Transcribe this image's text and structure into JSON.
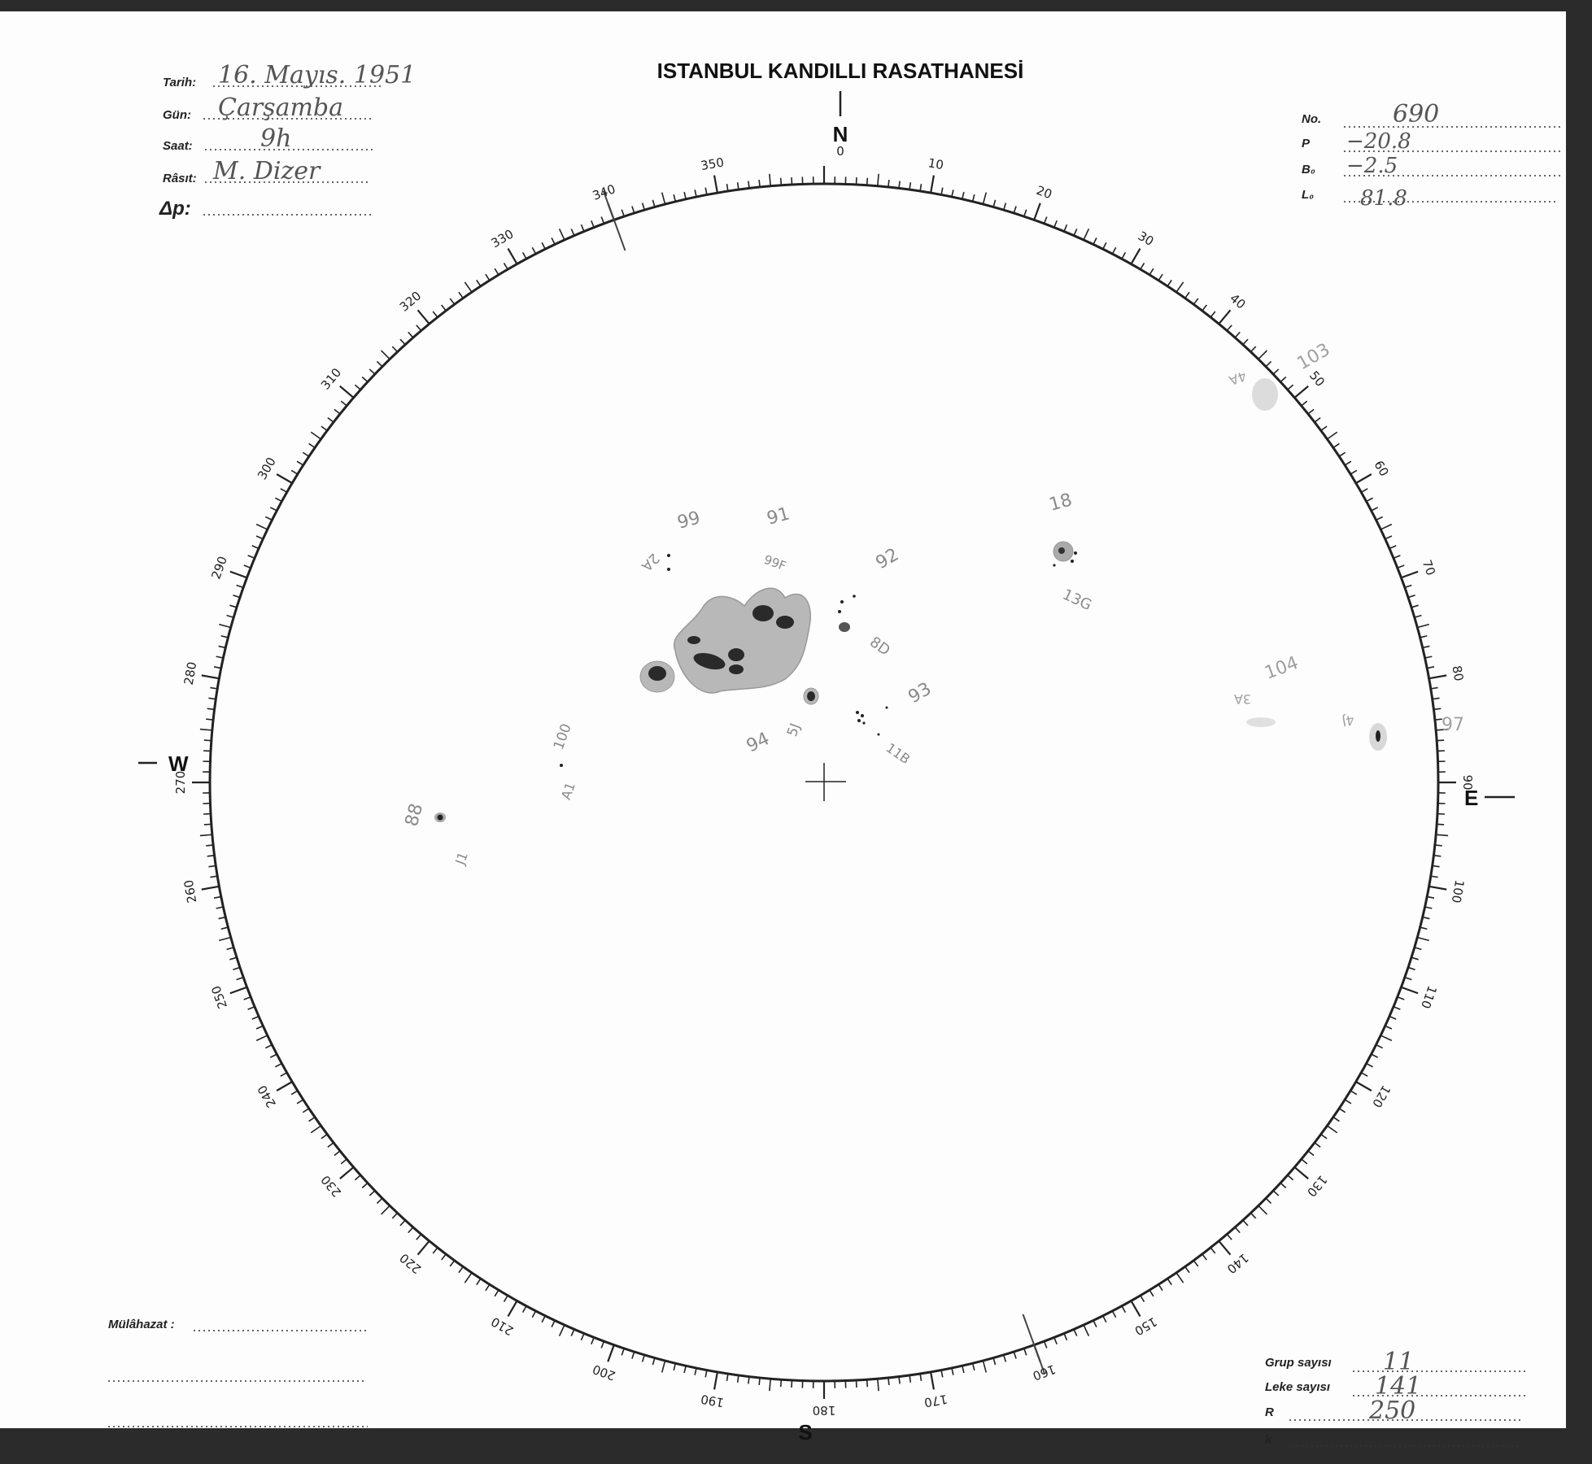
{
  "header": {
    "title": "ISTANBUL KANDILLI RASATHANESİ"
  },
  "observation": {
    "tarih": {
      "label": "Tarih:",
      "value": "16. Mayıs. 1951"
    },
    "gun": {
      "label": "Gün:",
      "value": "Çarşamba"
    },
    "saat": {
      "label": "Saat:",
      "value": "9h"
    },
    "rasit": {
      "label": "Râsıt:",
      "value": "M. Dizer"
    },
    "delta_p": {
      "label": "Δp:",
      "value": ""
    }
  },
  "parameters": {
    "no": {
      "label": "No.",
      "value": "690"
    },
    "p": {
      "label": "P",
      "value": "−20.8"
    },
    "b0": {
      "label": "B₀",
      "value": "−2.5"
    },
    "l0": {
      "label": "L₀",
      "value": "81.8"
    }
  },
  "remarks": {
    "label": "Mülâhazat :",
    "value": ""
  },
  "summary": {
    "grup": {
      "label": "Grup sayısı",
      "value": "11"
    },
    "leke": {
      "label": "Leke sayısı",
      "value": "141"
    },
    "r": {
      "label": "R",
      "value": "250"
    },
    "k": {
      "label": "k",
      "value": ""
    }
  },
  "compass": {
    "n": "N",
    "zero": "0",
    "s": "S",
    "w": "W",
    "e": "E"
  },
  "dial": {
    "labels": [
      "10",
      "20",
      "30",
      "40",
      "50",
      "60",
      "70",
      "80",
      "90",
      "100",
      "110",
      "120",
      "130",
      "140",
      "150",
      "160",
      "170",
      "180",
      "190",
      "200",
      "210",
      "220",
      "230",
      "240",
      "250",
      "260",
      "270",
      "280",
      "290",
      "300",
      "310",
      "320",
      "330",
      "340",
      "350"
    ]
  },
  "groups": [
    "99",
    "91",
    "2A",
    "99F",
    "92",
    "8D",
    "93",
    "94",
    "5J",
    "11B",
    "18",
    "13G",
    "100",
    "A1",
    "88",
    "J1",
    "103",
    "4A",
    "104",
    "3A",
    "4J",
    "97"
  ],
  "colors": {
    "ink": "#222222",
    "pencil": "#8a8a8a",
    "penumbra": "#b5b5b5",
    "umbra": "#2a2a2a"
  }
}
